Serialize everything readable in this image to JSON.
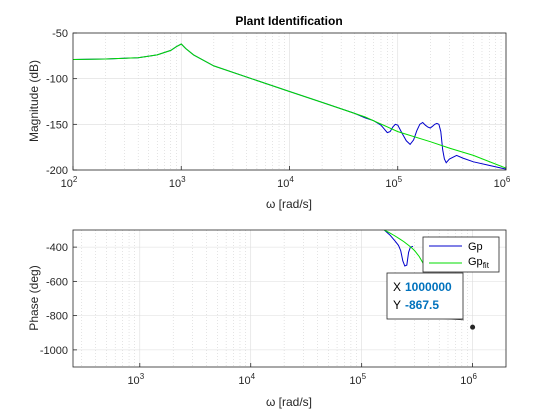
{
  "chart_data": [
    {
      "type": "line",
      "title": "Plant Identification",
      "xlabel": "ω [rad/s]",
      "ylabel": "Magnitude (dB)",
      "x_scale": "log",
      "xlim": [
        100,
        1000000
      ],
      "ylim": [
        -200,
        -50
      ],
      "yticks": [
        -50,
        -100,
        -150,
        -200
      ],
      "xticks": [
        {
          "value": 100,
          "exp": "2"
        },
        {
          "value": 1000,
          "exp": "3"
        },
        {
          "value": 10000,
          "exp": "4"
        },
        {
          "value": 100000,
          "exp": "5"
        },
        {
          "value": 1000000,
          "exp": "6"
        }
      ],
      "tick_base": "10",
      "grid": true,
      "series": [
        {
          "color": "#0000cc",
          "x": [
            100,
            200,
            400,
            600,
            800,
            900,
            1000,
            1100,
            1300,
            2000,
            5000,
            10000,
            20000,
            40000,
            50000,
            60000,
            70000,
            75000,
            80000,
            85000,
            90000,
            95000,
            100000,
            110000,
            120000,
            130000,
            140000,
            150000,
            160000,
            170000,
            180000,
            190000,
            200000,
            210000,
            220000,
            230000,
            240000,
            250000,
            260000,
            270000,
            280000,
            300000,
            350000,
            400000,
            500000,
            700000,
            1000000
          ],
          "y": [
            -79,
            -78.5,
            -77,
            -74,
            -69,
            -65,
            -62,
            -67,
            -74,
            -86,
            -102,
            -114,
            -126,
            -138,
            -143,
            -146,
            -151,
            -155,
            -159,
            -158,
            -153,
            -150,
            -151,
            -160,
            -168,
            -172,
            -167,
            -157,
            -150,
            -148,
            -151,
            -153,
            -154,
            -152,
            -150,
            -149,
            -150,
            -158,
            -178,
            -188,
            -192,
            -188,
            -184,
            -187,
            -191,
            -195,
            -199
          ]
        },
        {
          "color": "#00dd00",
          "x": [
            100,
            200,
            400,
            600,
            800,
            900,
            1000,
            1100,
            1300,
            2000,
            5000,
            10000,
            20000,
            50000,
            100000,
            200000,
            300000,
            500000,
            1000000
          ],
          "y": [
            -79,
            -78.5,
            -77,
            -74,
            -69,
            -65,
            -62,
            -67,
            -74,
            -86,
            -102,
            -114,
            -126,
            -142,
            -158,
            -169,
            -176,
            -184,
            -198
          ]
        }
      ]
    },
    {
      "type": "line",
      "xlabel": "ω [rad/s]",
      "ylabel": "Phase (deg)",
      "x_scale": "log",
      "xlim": [
        250,
        2000000
      ],
      "ylim": [
        -1100,
        -300
      ],
      "yticks": [
        -400,
        -600,
        -800,
        -1000
      ],
      "xticks": [
        {
          "value": 1000,
          "exp": "3"
        },
        {
          "value": 10000,
          "exp": "4"
        },
        {
          "value": 100000,
          "exp": "5"
        },
        {
          "value": 1000000,
          "exp": "6"
        }
      ],
      "tick_base": "10",
      "grid": true,
      "legend": {
        "placement": "top-right",
        "entries": [
          {
            "name": "Gp",
            "color": "#0000cc"
          },
          {
            "name": "Gp",
            "sub": "fit",
            "color": "#00dd00"
          }
        ]
      },
      "series": [
        {
          "color": "#0000cc",
          "x": [
            160000,
            180000,
            200000,
            215000,
            225000,
            235000,
            245000,
            255000,
            265000,
            275000,
            290000
          ],
          "y": [
            -300,
            -330,
            -365,
            -390,
            -420,
            -480,
            -510,
            -505,
            -430,
            -400,
            -395
          ]
        },
        {
          "color": "#00dd00",
          "x": [
            160000,
            180000,
            200000,
            220000,
            240000,
            260000,
            280000,
            300000,
            330000,
            370000
          ],
          "y": [
            -300,
            -318,
            -335,
            -352,
            -368,
            -385,
            -402,
            -420,
            -455,
            -510
          ]
        }
      ],
      "datatip": {
        "x_label": "X",
        "x_value": "1000000",
        "y_label": "Y",
        "y_value": "-867.5",
        "point": {
          "x": 1000000,
          "y": -867.5
        },
        "value_color": "#0072bd"
      }
    }
  ]
}
